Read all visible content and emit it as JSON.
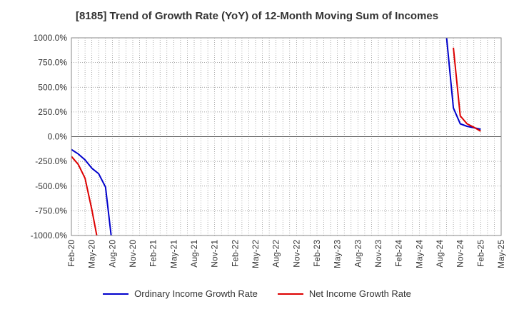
{
  "chart_data": {
    "type": "line",
    "title": "[8185]  Trend of Growth Rate (YoY) of 12-Month Moving Sum of Incomes",
    "xlabel": "",
    "ylabel": "",
    "ylim": [
      -1000,
      1000
    ],
    "yticks": [
      1000,
      750,
      500,
      250,
      0,
      -250,
      -500,
      -750,
      -1000
    ],
    "ytick_labels": [
      "1000.0%",
      "750.0%",
      "500.0%",
      "250.0%",
      "0.0%",
      "-250.0%",
      "-500.0%",
      "-750.0%",
      "-1000.0%"
    ],
    "x_start": "Feb-20",
    "x_end": "May-25",
    "xtick_labels": [
      "Feb-20",
      "May-20",
      "Aug-20",
      "Nov-20",
      "Feb-21",
      "May-21",
      "Aug-21",
      "Nov-21",
      "Feb-22",
      "May-22",
      "Aug-22",
      "Nov-22",
      "Feb-23",
      "May-23",
      "Aug-23",
      "Nov-23",
      "Feb-24",
      "May-24",
      "Aug-24",
      "Nov-24",
      "Feb-25",
      "May-25"
    ],
    "grid": true,
    "legend_position": "bottom",
    "series": [
      {
        "name": "Ordinary Income Growth Rate",
        "color": "#0000cc",
        "points": [
          [
            "Feb-20",
            -130
          ],
          [
            "Mar-20",
            -175
          ],
          [
            "Apr-20",
            -235
          ],
          [
            "May-20",
            -320
          ],
          [
            "Jun-20",
            -375
          ],
          [
            "Jul-20",
            -510
          ],
          [
            "Aug-20",
            -1100
          ],
          null,
          [
            "Aug-24",
            1100
          ],
          [
            "Sep-24",
            1000
          ],
          [
            "Oct-24",
            290
          ],
          [
            "Nov-24",
            130
          ],
          [
            "Dec-24",
            105
          ],
          [
            "Jan-25",
            90
          ],
          [
            "Feb-25",
            75
          ]
        ]
      },
      {
        "name": "Net Income Growth Rate",
        "color": "#dd0000",
        "points": [
          [
            "Feb-20",
            -200
          ],
          [
            "Mar-20",
            -280
          ],
          [
            "Apr-20",
            -420
          ],
          [
            "May-20",
            -740
          ],
          [
            "Jun-20",
            -1100
          ],
          null,
          [
            "Oct-24",
            900
          ],
          [
            "Nov-24",
            210
          ],
          [
            "Dec-24",
            130
          ],
          [
            "Jan-25",
            95
          ],
          [
            "Feb-25",
            55
          ]
        ]
      }
    ]
  }
}
